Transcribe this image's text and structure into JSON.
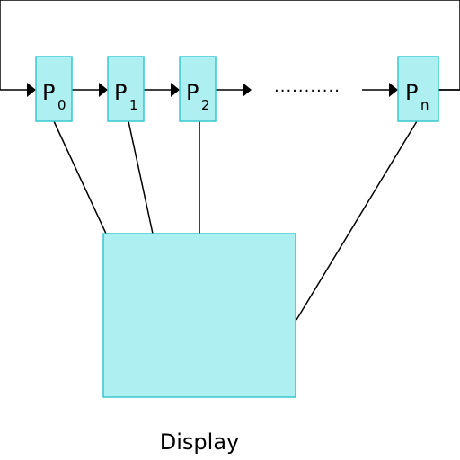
{
  "processors": [
    {
      "main": "P",
      "sub": "0"
    },
    {
      "main": "P",
      "sub": "1"
    },
    {
      "main": "P",
      "sub": "2"
    },
    {
      "main": "P",
      "sub": "n"
    }
  ],
  "ellipsis": "...........",
  "display": {
    "label": "Display"
  },
  "colors": {
    "box_fill": "#aeeff2",
    "box_stroke": "#37c8d0",
    "line": "#000000"
  }
}
